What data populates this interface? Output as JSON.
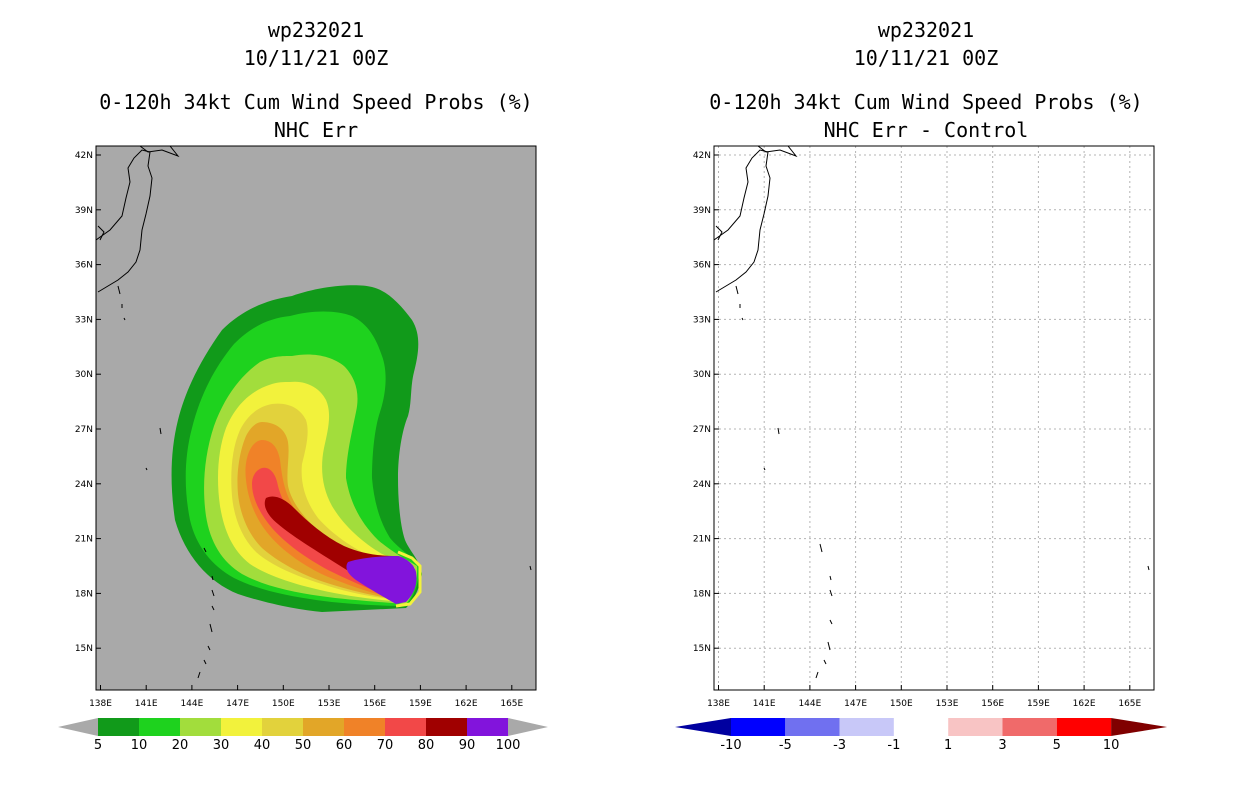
{
  "left_panel": {
    "line1": "wp232021",
    "line2": "10/11/21 00Z",
    "line3": "0-120h 34kt Cum Wind Speed Probs (%)",
    "line4": "NHC Err"
  },
  "right_panel": {
    "line1": "wp232021",
    "line2": "10/11/21 00Z",
    "line3": "0-120h 34kt Cum Wind Speed Probs (%)",
    "line4": "NHC Err - Control"
  },
  "map": {
    "lon_ticks": [
      "138E",
      "141E",
      "144E",
      "147E",
      "150E",
      "153E",
      "156E",
      "159E",
      "162E",
      "165E"
    ],
    "lat_ticks": [
      "42N",
      "39N",
      "36N",
      "33N",
      "30N",
      "27N",
      "24N",
      "21N",
      "18N",
      "15N"
    ],
    "background_color": "#a9a9a9"
  },
  "left_legend": {
    "labels": [
      "5",
      "10",
      "20",
      "30",
      "40",
      "50",
      "60",
      "70",
      "80",
      "90",
      "100"
    ],
    "colors": [
      "#119a1a",
      "#1ed21e",
      "#a2dd3c",
      "#f2f23c",
      "#e2d23c",
      "#e2a628",
      "#f08228",
      "#f24848",
      "#a00000",
      "#8214dc"
    ],
    "end_color": "#a9a9a9"
  },
  "right_legend": {
    "labels": [
      "-10",
      "-5",
      "-3",
      "-1",
      "1",
      "3",
      "5",
      "10"
    ],
    "colors": [
      "#0000ff",
      "#7070f0",
      "#c8c8f8",
      "#ffffff",
      "#f8c4c4",
      "#f06a6a",
      "#ff0000"
    ],
    "left_end_color": "#0000a0",
    "right_end_color": "#800000"
  }
}
